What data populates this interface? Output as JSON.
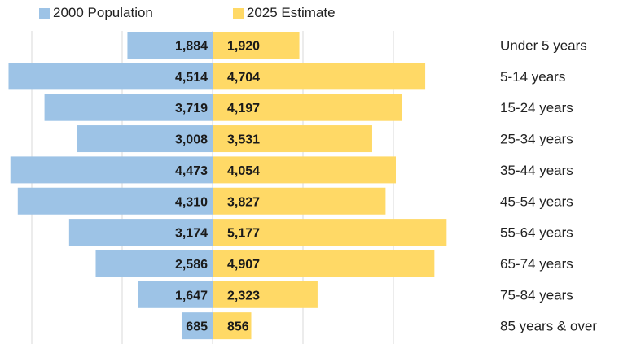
{
  "chart_data": {
    "type": "bar",
    "orientation": "horizontal-diverging",
    "categories": [
      "Under 5 years",
      "5-14 years",
      "15-24 years",
      "25-34 years",
      "35-44 years",
      "45-54 years",
      "55-64 years",
      "65-74 years",
      "75-84 years",
      "85 years & over"
    ],
    "series": [
      {
        "name": "2000 Population",
        "values": [
          1884,
          4514,
          3719,
          3008,
          4473,
          4310,
          3174,
          2586,
          1647,
          685
        ],
        "labels": [
          "1,884",
          "4,514",
          "3,719",
          "3,008",
          "4,473",
          "4,310",
          "3,174",
          "2,586",
          "1,647",
          "685"
        ],
        "color": "#9DC3E6",
        "side": "left"
      },
      {
        "name": "2025 Estimate",
        "values": [
          1920,
          4704,
          4197,
          3531,
          4054,
          3827,
          5177,
          4907,
          2323,
          856
        ],
        "labels": [
          "1,920",
          "4,704",
          "4,197",
          "3,531",
          "4,054",
          "3,827",
          "5,177",
          "4,907",
          "2,323",
          "856"
        ],
        "color": "#FFD966",
        "side": "right"
      }
    ],
    "xlim": [
      -4600,
      6000
    ],
    "grid": true,
    "legend_position": "top-left"
  }
}
